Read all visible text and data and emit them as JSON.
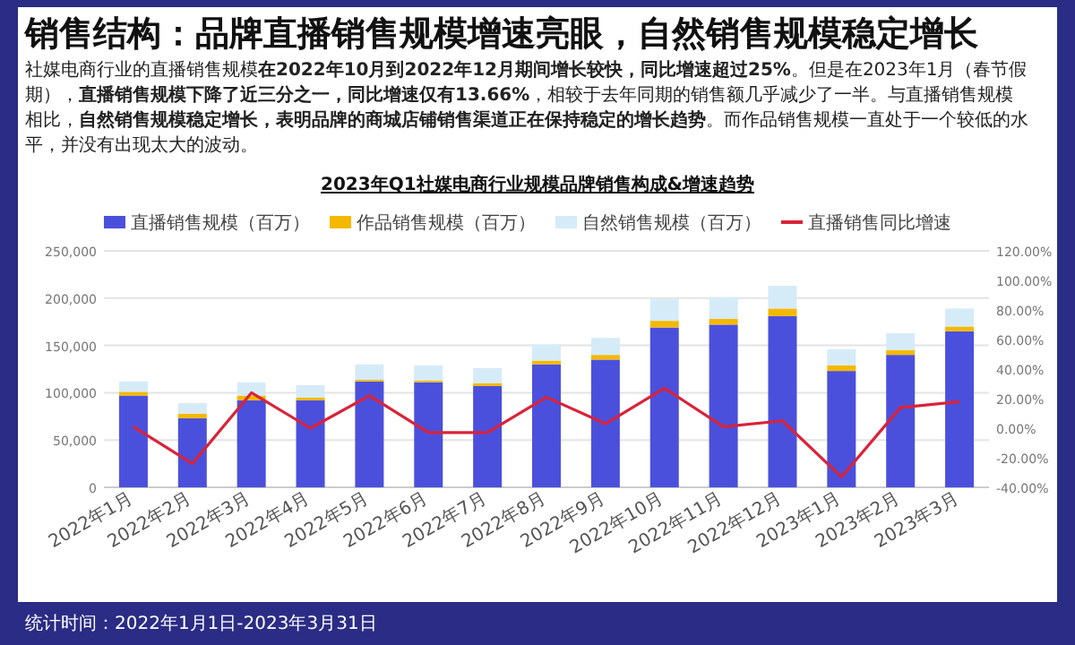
{
  "chart_data": {
    "type": "bar",
    "stacked": true,
    "title": "销售结构：品牌直播销售规模增速亮眼，自然销售规模稳定增长",
    "subtitle": "2023年Q1社媒电商行业规模品牌销售构成&增速趋势",
    "annotations": [
      "社媒电商行业的直播销售规模**在2022年10月到2022年12月期间增长较快，同比增速超过25%**。但是在2023年1月（春节假期），**直播销售规模下降了近三分之一，同比增速仅有13.66%**，相较于去年同期的销售额几乎减少了一半。与直播销售规模相比，**自然销售规模稳定增长，表明品牌的商城店铺销售渠道正在保持稳定的增长趋势**。而作品销售规模一直处于一个较低的水平，并没有出现太大的波动。",
      "统计时间：2022年1月1日-2023年3月31日"
    ],
    "categories": [
      "2022年1月",
      "2022年2月",
      "2022年3月",
      "2022年4月",
      "2022年5月",
      "2022年6月",
      "2022年7月",
      "2022年8月",
      "2022年9月",
      "2022年10月",
      "2022年11月",
      "2022年12月",
      "2023年1月",
      "2023年2月",
      "2023年3月"
    ],
    "series": [
      {
        "name": "直播销售规模（百万）",
        "color": "#4b50dc",
        "values": [
          97000,
          73000,
          92000,
          92000,
          112000,
          111000,
          107000,
          130000,
          135000,
          169000,
          172000,
          181000,
          123000,
          140000,
          165000
        ]
      },
      {
        "name": "作品销售规模（百万）",
        "color": "#f5b800",
        "values": [
          4000,
          5000,
          5000,
          3000,
          2000,
          2000,
          3000,
          4000,
          5000,
          7000,
          6000,
          8000,
          6000,
          5000,
          5000
        ]
      },
      {
        "name": "自然销售规模（百万）",
        "color": "#d6ebf8",
        "values": [
          11000,
          11000,
          14000,
          13000,
          16000,
          16000,
          16000,
          17000,
          18000,
          23000,
          23000,
          24000,
          17000,
          18000,
          19000
        ]
      },
      {
        "name": "直播销售同比增速",
        "type": "line",
        "axis": "y2",
        "color": "#d9233a",
        "values": [
          1,
          -24,
          24,
          0,
          22,
          -3,
          -3,
          21,
          3,
          27,
          1,
          5,
          -33,
          14,
          18
        ]
      }
    ],
    "ylim": [
      0,
      250000
    ],
    "yticks": [
      {
        "value": 0,
        "label": "0"
      },
      {
        "value": 50000,
        "label": "50,000"
      },
      {
        "value": 100000,
        "label": "100,000"
      },
      {
        "value": 150000,
        "label": "150,000"
      },
      {
        "value": 200000,
        "label": "200,000"
      },
      {
        "value": 250000,
        "label": "250,000"
      }
    ],
    "y2lim": [
      -40,
      120
    ],
    "y2ticks": [
      {
        "value": -40,
        "label": "-40.00%"
      },
      {
        "value": -20,
        "label": "-20.00%"
      },
      {
        "value": 0,
        "label": "0.00%"
      },
      {
        "value": 20,
        "label": "20.00%"
      },
      {
        "value": 40,
        "label": "40.00%"
      },
      {
        "value": 60,
        "label": "60.00%"
      },
      {
        "value": 80,
        "label": "80.00%"
      },
      {
        "value": 100,
        "label": "100.00%"
      },
      {
        "value": 120,
        "label": "120.00%"
      }
    ],
    "grid": "y",
    "legend": "top",
    "marker": "none",
    "line_style": "solid"
  }
}
